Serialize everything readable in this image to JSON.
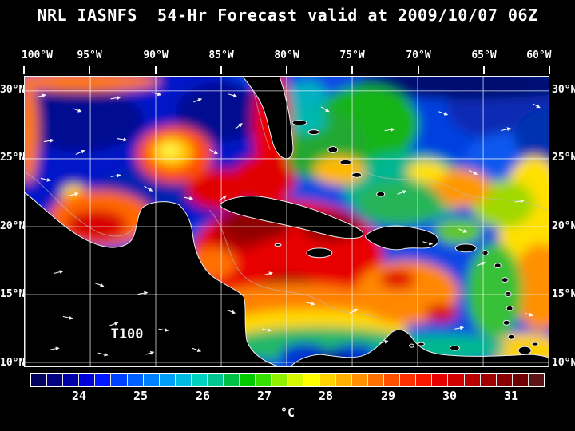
{
  "title": "NRL IASNFS  54-Hr Forecast valid at 2009/10/07 06Z",
  "map": {
    "depth_label": "T100",
    "lon_ticks": [
      "100°W",
      "95°W",
      "90°W",
      "85°W",
      "80°W",
      "75°W",
      "70°W",
      "65°W",
      "60°W"
    ],
    "lat_ticks": [
      "30°N",
      "25°N",
      "20°N",
      "15°N",
      "10°N"
    ]
  },
  "colorbar": {
    "unit_label": "°C",
    "tick_labels": [
      "24",
      "25",
      "26",
      "27",
      "28",
      "29",
      "30",
      "31"
    ],
    "segment_colors": [
      "#000060",
      "#000080",
      "#0000a8",
      "#0000d8",
      "#0018ff",
      "#0040ff",
      "#0060ff",
      "#0080ff",
      "#00a0f8",
      "#00bce0",
      "#00d2c0",
      "#00c890",
      "#00c048",
      "#00cc00",
      "#38e000",
      "#90f000",
      "#d8f800",
      "#ffff00",
      "#ffd400",
      "#ffb000",
      "#ff9000",
      "#ff7000",
      "#ff5000",
      "#ff3000",
      "#f81800",
      "#e80000",
      "#d00000",
      "#b80000",
      "#a00000",
      "#880000",
      "#700000",
      "#5a1414"
    ]
  },
  "chart_data": {
    "type": "heatmap",
    "title": "NRL IASNFS 54-Hr Forecast valid at 2009/10/07 06Z",
    "variable": "T100",
    "unit": "°C",
    "colorbar_ticks": [
      24,
      25,
      26,
      27,
      28,
      29,
      30,
      31
    ],
    "lon_ticks_deg_w": [
      100,
      95,
      90,
      85,
      80,
      75,
      70,
      65,
      60
    ],
    "lat_ticks_deg_n": [
      30,
      25,
      20,
      15,
      10
    ],
    "legend_position": "bottom"
  }
}
